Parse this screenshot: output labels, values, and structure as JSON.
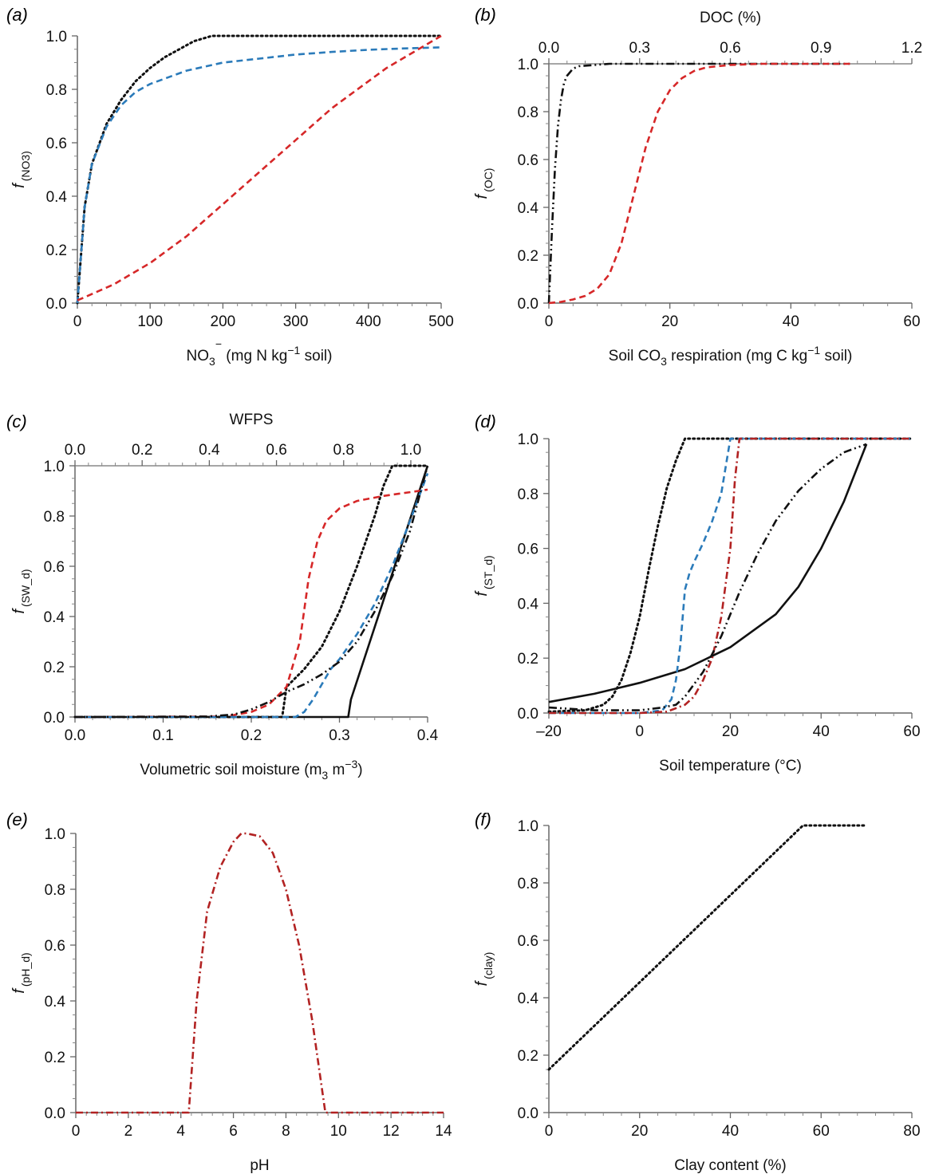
{
  "chart_data": [
    {
      "panel": "(a)",
      "type": "line",
      "ylabel_main": "f",
      "ylabel_sub": "(NO3)",
      "xlabel_parts": [
        "NO",
        "3",
        "−",
        " (mg N kg",
        "−1",
        " soil)"
      ],
      "xlim": [
        0,
        500
      ],
      "ylim": [
        0,
        1
      ],
      "xticks": [
        0,
        100,
        200,
        300,
        400,
        500
      ],
      "xtick_labels": [
        "0",
        "100",
        "200",
        "300",
        "400",
        "500"
      ],
      "yticks": [
        0,
        0.2,
        0.4,
        0.6,
        0.8,
        1.0
      ],
      "ytick_labels": [
        "0.0",
        "0.2",
        "0.4",
        "0.6",
        "0.8",
        "1.0"
      ],
      "series": [
        {
          "style": "dotted",
          "color": "#111111",
          "x": [
            0,
            10,
            20,
            40,
            60,
            80,
            100,
            120,
            140,
            160,
            185,
            250,
            350,
            500
          ],
          "y": [
            0,
            0.36,
            0.52,
            0.67,
            0.76,
            0.83,
            0.88,
            0.92,
            0.95,
            0.98,
            1.0,
            1.0,
            1.0,
            1.0
          ]
        },
        {
          "style": "dashed",
          "color": "#2b7bba",
          "x": [
            0,
            10,
            20,
            40,
            60,
            80,
            100,
            150,
            200,
            250,
            300,
            350,
            400,
            450,
            500
          ],
          "y": [
            0,
            0.36,
            0.52,
            0.66,
            0.74,
            0.79,
            0.82,
            0.87,
            0.9,
            0.915,
            0.93,
            0.94,
            0.948,
            0.953,
            0.957
          ]
        },
        {
          "style": "dashed",
          "color": "#d62728",
          "x": [
            0,
            25,
            50,
            75,
            100,
            125,
            150,
            175,
            200,
            225,
            250,
            275,
            300,
            325,
            350,
            375,
            400,
            425,
            450,
            475,
            500
          ],
          "y": [
            0.01,
            0.04,
            0.07,
            0.11,
            0.15,
            0.2,
            0.25,
            0.31,
            0.37,
            0.43,
            0.49,
            0.55,
            0.61,
            0.67,
            0.73,
            0.78,
            0.83,
            0.88,
            0.92,
            0.96,
            1.0
          ]
        }
      ]
    },
    {
      "panel": "(b)",
      "type": "line",
      "ylabel_main": "f",
      "ylabel_sub": "(OC)",
      "xlabel_parts": [
        "Soil CO",
        "3",
        "",
        " respiration (mg C kg",
        "−1",
        " soil)"
      ],
      "top_xlabel": "DOC (%)",
      "xlim": [
        0,
        60
      ],
      "ylim": [
        0,
        1
      ],
      "top_xlim": [
        0,
        1.2
      ],
      "xticks": [
        0,
        20,
        40,
        60
      ],
      "xtick_labels": [
        "0",
        "20",
        "40",
        "60"
      ],
      "top_xticks": [
        0,
        0.3,
        0.6,
        0.9,
        1.2
      ],
      "top_xtick_labels": [
        "0.0",
        "0.3",
        "0.6",
        "0.9",
        "1.2"
      ],
      "yticks": [
        0,
        0.2,
        0.4,
        0.6,
        0.8,
        1.0
      ],
      "ytick_labels": [
        "0.0",
        "0.2",
        "0.4",
        "0.6",
        "0.8",
        "1.0"
      ],
      "series": [
        {
          "style": "dashdotdot",
          "color": "#111111",
          "axis": "top",
          "x": [
            0,
            0.01,
            0.02,
            0.03,
            0.04,
            0.05,
            0.06,
            0.08,
            0.1,
            0.15,
            0.2,
            0.3,
            0.5,
            1.0
          ],
          "y": [
            0,
            0.3,
            0.56,
            0.74,
            0.85,
            0.92,
            0.95,
            0.98,
            0.99,
            0.995,
            1.0,
            1.0,
            1.0,
            1.0
          ]
        },
        {
          "style": "dashed",
          "color": "#d62728",
          "x": [
            0,
            2,
            4,
            6,
            8,
            10,
            12,
            14,
            16,
            18,
            20,
            22,
            24,
            26,
            28,
            30,
            35,
            40,
            45,
            50
          ],
          "y": [
            0,
            0.005,
            0.015,
            0.03,
            0.06,
            0.12,
            0.25,
            0.45,
            0.65,
            0.8,
            0.89,
            0.94,
            0.97,
            0.985,
            0.99,
            0.995,
            1.0,
            1.0,
            1.0,
            1.0
          ]
        }
      ]
    },
    {
      "panel": "(c)",
      "type": "line",
      "ylabel_main": "f",
      "ylabel_sub": "(SW_d)",
      "xlabel_parts": [
        "Volumetric soil moisture (m",
        "3",
        "",
        " m",
        "−3",
        ")"
      ],
      "top_xlabel": "WFPS",
      "xlim": [
        0,
        0.4
      ],
      "ylim": [
        0,
        1
      ],
      "top_xlim": [
        0,
        1.05
      ],
      "xticks": [
        0,
        0.1,
        0.2,
        0.3,
        0.4
      ],
      "xtick_labels": [
        "0.0",
        "0.1",
        "0.2",
        "0.3",
        "0.4"
      ],
      "top_xticks": [
        0,
        0.2,
        0.4,
        0.6,
        0.8,
        1.0
      ],
      "top_xtick_labels": [
        "0.0",
        "0.2",
        "0.4",
        "0.6",
        "0.8",
        "1.0"
      ],
      "yticks": [
        0,
        0.2,
        0.4,
        0.6,
        0.8,
        1.0
      ],
      "ytick_labels": [
        "0.0",
        "0.2",
        "0.4",
        "0.6",
        "0.8",
        "1.0"
      ],
      "series": [
        {
          "style": "solid",
          "color": "#111111",
          "x": [
            0,
            0.31,
            0.313,
            0.4
          ],
          "y": [
            0,
            0,
            0.07,
            1.0
          ]
        },
        {
          "style": "dotted",
          "color": "#111111",
          "x": [
            0,
            0.235,
            0.24,
            0.26,
            0.28,
            0.3,
            0.32,
            0.34,
            0.35,
            0.36,
            0.4
          ],
          "y": [
            0,
            0,
            0.12,
            0.19,
            0.28,
            0.42,
            0.6,
            0.8,
            0.92,
            1.0,
            1.0
          ]
        },
        {
          "style": "dashed",
          "color": "#d62728",
          "x": [
            0,
            0.16,
            0.18,
            0.2,
            0.22,
            0.24,
            0.255,
            0.265,
            0.275,
            0.285,
            0.3,
            0.32,
            0.35,
            0.38,
            0.4
          ],
          "y": [
            0,
            0.002,
            0.008,
            0.02,
            0.05,
            0.12,
            0.3,
            0.55,
            0.7,
            0.78,
            0.83,
            0.86,
            0.88,
            0.895,
            0.905
          ]
        },
        {
          "style": "dashed",
          "color": "#2b7bba",
          "x": [
            0,
            0.25,
            0.26,
            0.27,
            0.28,
            0.29,
            0.3,
            0.32,
            0.34,
            0.36,
            0.38,
            0.4
          ],
          "y": [
            0,
            0,
            0.02,
            0.07,
            0.13,
            0.19,
            0.23,
            0.33,
            0.45,
            0.6,
            0.78,
            0.97
          ]
        },
        {
          "style": "dashdotdot",
          "color": "#111111",
          "x": [
            0,
            0.15,
            0.18,
            0.2,
            0.22,
            0.24,
            0.26,
            0.28,
            0.3,
            0.32,
            0.34,
            0.36,
            0.38,
            0.4
          ],
          "y": [
            0,
            0.002,
            0.01,
            0.03,
            0.06,
            0.1,
            0.13,
            0.17,
            0.22,
            0.3,
            0.42,
            0.56,
            0.74,
            1.0
          ]
        }
      ]
    },
    {
      "panel": "(d)",
      "type": "line",
      "ylabel_main": "f",
      "ylabel_sub": "(ST_d)",
      "xlabel_parts": [
        "Soil temperature (°C)",
        "",
        "",
        "",
        "",
        ""
      ],
      "xlim": [
        -20,
        60
      ],
      "ylim": [
        0,
        1
      ],
      "xticks": [
        -20,
        0,
        20,
        40,
        60
      ],
      "xtick_labels": [
        "–20",
        "0",
        "20",
        "40",
        "60"
      ],
      "yticks": [
        0,
        0.2,
        0.4,
        0.6,
        0.8,
        1.0
      ],
      "ytick_labels": [
        "0.0",
        "0.2",
        "0.4",
        "0.6",
        "0.8",
        "1.0"
      ],
      "series": [
        {
          "style": "solid",
          "color": "#111111",
          "x": [
            -20,
            -10,
            0,
            10,
            20,
            30,
            35,
            40,
            45,
            50
          ],
          "y": [
            0.04,
            0.07,
            0.11,
            0.16,
            0.24,
            0.36,
            0.46,
            0.6,
            0.77,
            0.98
          ]
        },
        {
          "style": "dotted",
          "color": "#111111",
          "x": [
            -20,
            -12,
            -8,
            -6,
            -4,
            -2,
            0,
            2,
            4,
            6,
            8,
            10,
            12,
            20,
            60
          ],
          "y": [
            0.005,
            0.01,
            0.03,
            0.06,
            0.12,
            0.22,
            0.35,
            0.52,
            0.68,
            0.82,
            0.92,
            1.0,
            1.0,
            1.0,
            1.0
          ]
        },
        {
          "style": "dashed",
          "color": "#2b7bba",
          "x": [
            -20,
            0,
            5,
            7,
            8,
            9,
            10,
            11,
            12,
            14,
            16,
            18,
            20,
            25,
            40,
            60
          ],
          "y": [
            0,
            0,
            0.01,
            0.05,
            0.12,
            0.25,
            0.45,
            0.51,
            0.55,
            0.62,
            0.7,
            0.8,
            1.0,
            1.0,
            1.0,
            1.0
          ]
        },
        {
          "style": "dashdot",
          "color": "#b22222",
          "x": [
            -20,
            0,
            6,
            10,
            12,
            14,
            16,
            18,
            20,
            21,
            22,
            30,
            45,
            60
          ],
          "y": [
            0,
            0,
            0.005,
            0.03,
            0.06,
            0.12,
            0.2,
            0.35,
            0.6,
            0.85,
            1.0,
            1.0,
            1.0,
            1.0
          ]
        },
        {
          "style": "dashdotdot",
          "color": "#111111",
          "x": [
            -20,
            -10,
            0,
            5,
            8,
            10,
            14,
            18,
            22,
            26,
            30,
            35,
            40,
            45,
            50
          ],
          "y": [
            0.02,
            0.01,
            0.01,
            0.02,
            0.03,
            0.06,
            0.15,
            0.28,
            0.44,
            0.58,
            0.7,
            0.81,
            0.89,
            0.95,
            0.98
          ]
        }
      ]
    },
    {
      "panel": "(e)",
      "type": "line",
      "ylabel_main": "f",
      "ylabel_sub": "(pH_d)",
      "xlabel_parts": [
        "pH",
        "",
        "",
        "",
        "",
        ""
      ],
      "xlim": [
        0,
        14
      ],
      "ylim": [
        0,
        1
      ],
      "xticks": [
        0,
        2,
        4,
        6,
        8,
        10,
        12,
        14
      ],
      "xtick_labels": [
        "0",
        "2",
        "4",
        "6",
        "8",
        "10",
        "12",
        "14"
      ],
      "yticks": [
        0,
        0.2,
        0.4,
        0.6,
        0.8,
        1.0
      ],
      "ytick_labels": [
        "0.0",
        "0.2",
        "0.4",
        "0.6",
        "0.8",
        "1.0"
      ],
      "series": [
        {
          "style": "dashdot",
          "color": "#b22222",
          "x": [
            0,
            4.3,
            4.6,
            5.0,
            5.5,
            6.0,
            6.3,
            6.5,
            7.0,
            7.5,
            8.0,
            8.5,
            9.0,
            9.5,
            14
          ],
          "y": [
            0,
            0,
            0.4,
            0.72,
            0.88,
            0.97,
            1.0,
            1.0,
            0.99,
            0.93,
            0.8,
            0.6,
            0.33,
            0,
            0
          ]
        }
      ]
    },
    {
      "panel": "(f)",
      "type": "line",
      "ylabel_main": "f",
      "ylabel_sub": "(clay)",
      "xlabel_parts": [
        "Clay content (%)",
        "",
        "",
        "",
        "",
        ""
      ],
      "xlim": [
        0,
        80
      ],
      "ylim": [
        0,
        1
      ],
      "xticks": [
        0,
        20,
        40,
        60,
        80
      ],
      "xtick_labels": [
        "0",
        "20",
        "40",
        "60",
        "80"
      ],
      "yticks": [
        0,
        0.2,
        0.4,
        0.6,
        0.8,
        1.0
      ],
      "ytick_labels": [
        "0.0",
        "0.2",
        "0.4",
        "0.6",
        "0.8",
        "1.0"
      ],
      "series": [
        {
          "style": "dotted",
          "color": "#111111",
          "x": [
            0,
            56,
            70
          ],
          "y": [
            0.15,
            1.0,
            1.0
          ]
        }
      ]
    }
  ]
}
